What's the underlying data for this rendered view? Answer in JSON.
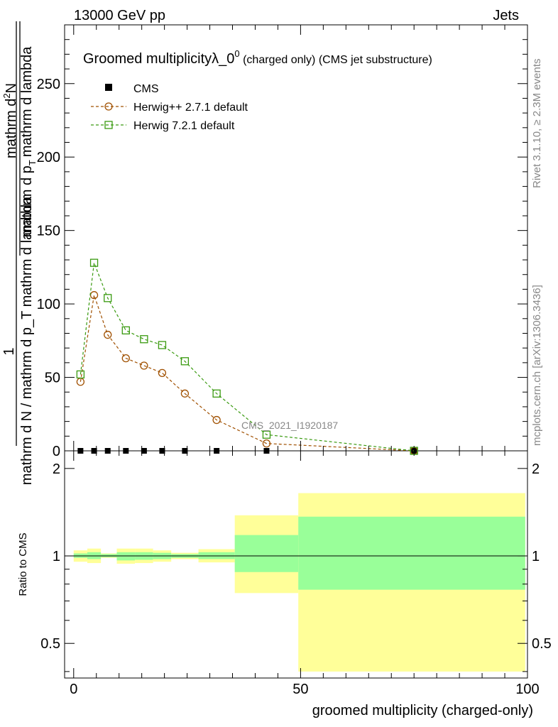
{
  "header": {
    "left": "13000 GeV pp",
    "right": "Jets"
  },
  "side_labels": {
    "rivet": "Rivet 3.1.10, ≥ 2.3M events",
    "mcplots": "mcplots.cern.ch [arXiv:1306.3436]"
  },
  "analysis_tag": "CMS_2021_I1920187",
  "chart_data": [
    {
      "type": "line",
      "title_main": "Groomed multiplicityλ_0",
      "title_sup": "0",
      "title_suffix": " (charged only) (CMS jet substructure)",
      "ylabel_num_prefix": "1",
      "ylabel_den": "mathrm d N / mathrm d p_T mathrm d lambda",
      "ylabel_num_right": "mathrm d²N",
      "ylabel_den_right": "mathrm d p_T mathrm d lambda",
      "ylabel_full_top": "mathrm d",
      "ylabel_full_top2": "N",
      "ylabel_full_bottom": "mathrm d p",
      "ylabel_full_bottom_sub": "T",
      "ylabel_full_bottom2": "mathrm d lambda",
      "ylim": [
        0,
        290
      ],
      "yticks": [
        0,
        50,
        100,
        150,
        200,
        250
      ],
      "ytick_labels": [
        "0",
        "50",
        "100",
        "150",
        "200",
        "250"
      ],
      "xlim": [
        -2,
        100
      ],
      "legend_position": "top-left",
      "series": [
        {
          "name": "CMS",
          "color": "#000000",
          "marker": "filled-square",
          "points": [
            [
              1.5,
              0
            ],
            [
              4.5,
              0
            ],
            [
              7.5,
              0
            ],
            [
              11.5,
              0
            ],
            [
              15.5,
              0
            ],
            [
              19.5,
              0
            ],
            [
              24.5,
              0
            ],
            [
              31.5,
              0
            ],
            [
              42.5,
              0
            ],
            [
              75,
              0
            ]
          ]
        },
        {
          "name": "Herwig++ 2.7.1 default",
          "color": "#a05000",
          "marker": "open-circle",
          "points": [
            [
              1.5,
              47
            ],
            [
              4.5,
              106
            ],
            [
              7.5,
              79
            ],
            [
              11.5,
              63
            ],
            [
              15.5,
              58
            ],
            [
              19.5,
              53
            ],
            [
              24.5,
              39
            ],
            [
              31.5,
              21
            ],
            [
              42.5,
              5
            ],
            [
              75,
              0
            ]
          ]
        },
        {
          "name": "Herwig 7.2.1 default",
          "color": "#3a9a10",
          "marker": "open-square",
          "points": [
            [
              1.5,
              52
            ],
            [
              4.5,
              128
            ],
            [
              7.5,
              104
            ],
            [
              11.5,
              82
            ],
            [
              15.5,
              76
            ],
            [
              19.5,
              72
            ],
            [
              24.5,
              61
            ],
            [
              31.5,
              39
            ],
            [
              42.5,
              11
            ],
            [
              75,
              0
            ]
          ]
        }
      ]
    },
    {
      "type": "area",
      "ylabel": "Ratio to CMS",
      "xlabel": "groomed multiplicity (charged-only)",
      "xlim": [
        -2,
        100
      ],
      "ylim": [
        0.38,
        2.3
      ],
      "xticks": [
        0,
        50,
        100
      ],
      "xtick_labels": [
        "0",
        "50",
        "100"
      ],
      "yticks": [
        0.5,
        1,
        2
      ],
      "ytick_labels": [
        "0.5",
        "1",
        "2"
      ],
      "bands": [
        {
          "x0": 0,
          "x1": 3,
          "stat_lo": 0.985,
          "stat_hi": 1.02,
          "tot_lo": 0.955,
          "tot_hi": 1.045
        },
        {
          "x0": 3,
          "x1": 6,
          "stat_lo": 0.975,
          "stat_hi": 1.03,
          "tot_lo": 0.945,
          "tot_hi": 1.06
        },
        {
          "x0": 6,
          "x1": 9.5,
          "stat_lo": 0.99,
          "stat_hi": 1.015,
          "tot_lo": 0.985,
          "tot_hi": 1.02
        },
        {
          "x0": 9.5,
          "x1": 13.5,
          "stat_lo": 0.965,
          "stat_hi": 1.03,
          "tot_lo": 0.94,
          "tot_hi": 1.06
        },
        {
          "x0": 13.5,
          "x1": 17.5,
          "stat_lo": 0.97,
          "stat_hi": 1.03,
          "tot_lo": 0.945,
          "tot_hi": 1.06
        },
        {
          "x0": 17.5,
          "x1": 21.5,
          "stat_lo": 0.975,
          "stat_hi": 1.025,
          "tot_lo": 0.955,
          "tot_hi": 1.045
        },
        {
          "x0": 21.5,
          "x1": 27.5,
          "stat_lo": 0.985,
          "stat_hi": 1.015,
          "tot_lo": 0.975,
          "tot_hi": 1.025
        },
        {
          "x0": 27.5,
          "x1": 35.5,
          "stat_lo": 0.975,
          "stat_hi": 1.03,
          "tot_lo": 0.95,
          "tot_hi": 1.055
        },
        {
          "x0": 35.5,
          "x1": 49.5,
          "stat_lo": 0.88,
          "stat_hi": 1.18,
          "tot_lo": 0.745,
          "tot_hi": 1.38
        },
        {
          "x0": 49.5,
          "x1": 99.5,
          "stat_lo": 0.765,
          "stat_hi": 1.365,
          "tot_lo": 0.4,
          "tot_hi": 1.645
        }
      ],
      "stat_color": "#99ff99",
      "total_color": "#ffff99",
      "reference_line": 1
    }
  ]
}
